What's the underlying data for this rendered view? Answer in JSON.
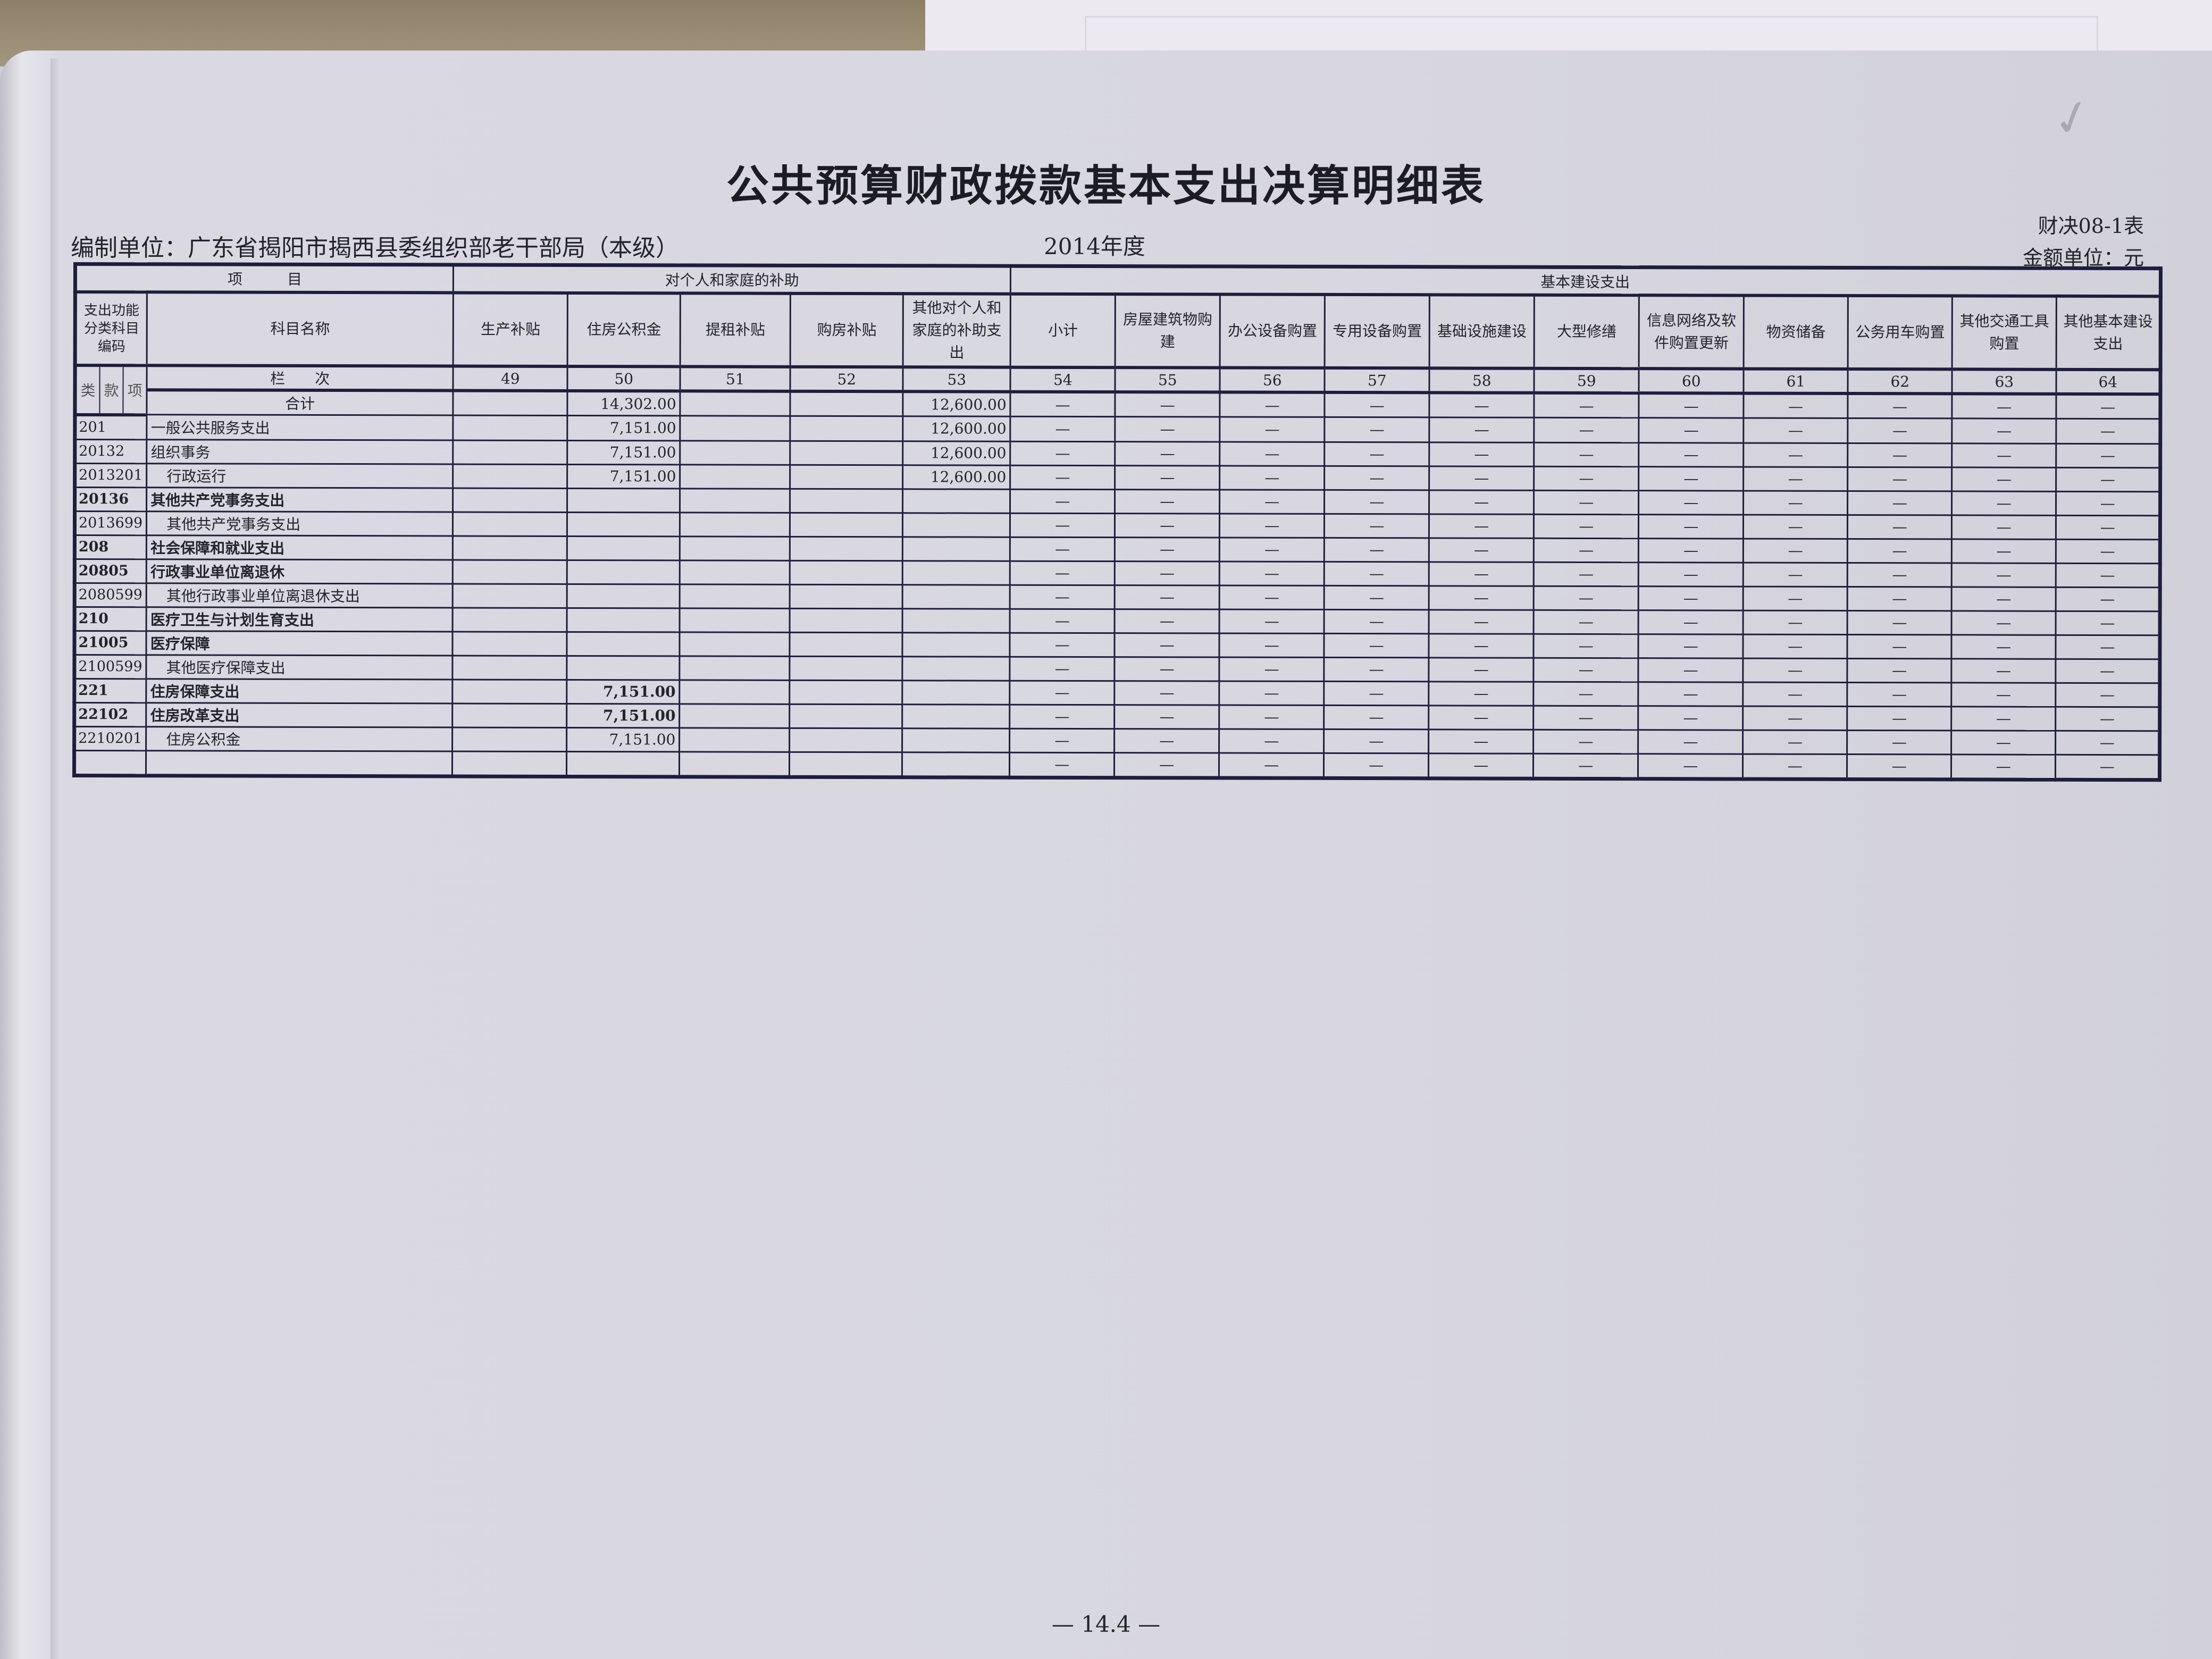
{
  "document": {
    "title": "公共预算财政拨款基本支出决算明细表",
    "unit": "编制单位：广东省揭阳市揭西县委组织部老干部局（本级）",
    "year": "2014年度",
    "form_no": "财决08-1表",
    "amount_unit": "金额单位：元",
    "page_number": "— 14.4 —"
  },
  "table": {
    "group_headers": {
      "item": "项　　　目",
      "personal": "对个人和家庭的补助",
      "construction": "基本建设支出"
    },
    "code_header": "支出功能分类科目编码",
    "name_header": "科目名称",
    "columns": [
      "生产补贴",
      "住房公积金",
      "提租补贴",
      "购房补贴",
      "其他对个人和家庭的补助支出",
      "小计",
      "房屋建筑物购建",
      "办公设备购置",
      "专用设备购置",
      "基础设施建设",
      "大型修缮",
      "信息网络及软件购置更新",
      "物资储备",
      "公务用车购置",
      "其他交通工具购置",
      "其他基本建设支出"
    ],
    "column_numbers": [
      "49",
      "50",
      "51",
      "52",
      "53",
      "54",
      "55",
      "56",
      "57",
      "58",
      "59",
      "60",
      "61",
      "62",
      "63",
      "64"
    ],
    "sub_code_labels": [
      "类",
      "款",
      "项"
    ],
    "line_label": "栏　　次",
    "total_label": "合计",
    "total_values": [
      "",
      "14,302.00",
      "",
      "",
      "12,600.00"
    ],
    "dash": "—",
    "rows": [
      {
        "code": "201",
        "name": "一般公共服务支出",
        "bold": false,
        "indent": false,
        "values": [
          "",
          "7,151.00",
          "",
          "",
          "12,600.00"
        ]
      },
      {
        "code": "20132",
        "name": "组织事务",
        "bold": false,
        "indent": false,
        "values": [
          "",
          "7,151.00",
          "",
          "",
          "12,600.00"
        ]
      },
      {
        "code": "2013201",
        "name": "行政运行",
        "bold": false,
        "indent": true,
        "values": [
          "",
          "7,151.00",
          "",
          "",
          "12,600.00"
        ]
      },
      {
        "code": "20136",
        "name": "其他共产党事务支出",
        "bold": true,
        "indent": false,
        "values": [
          "",
          "",
          "",
          "",
          ""
        ]
      },
      {
        "code": "2013699",
        "name": "其他共产党事务支出",
        "bold": false,
        "indent": true,
        "values": [
          "",
          "",
          "",
          "",
          ""
        ]
      },
      {
        "code": "208",
        "name": "社会保障和就业支出",
        "bold": true,
        "indent": false,
        "values": [
          "",
          "",
          "",
          "",
          ""
        ]
      },
      {
        "code": "20805",
        "name": "行政事业单位离退休",
        "bold": true,
        "indent": false,
        "values": [
          "",
          "",
          "",
          "",
          ""
        ]
      },
      {
        "code": "2080599",
        "name": "其他行政事业单位离退休支出",
        "bold": false,
        "indent": true,
        "values": [
          "",
          "",
          "",
          "",
          ""
        ]
      },
      {
        "code": "210",
        "name": "医疗卫生与计划生育支出",
        "bold": true,
        "indent": false,
        "values": [
          "",
          "",
          "",
          "",
          ""
        ]
      },
      {
        "code": "21005",
        "name": "医疗保障",
        "bold": true,
        "indent": false,
        "values": [
          "",
          "",
          "",
          "",
          ""
        ]
      },
      {
        "code": "2100599",
        "name": "其他医疗保障支出",
        "bold": false,
        "indent": true,
        "values": [
          "",
          "",
          "",
          "",
          ""
        ]
      },
      {
        "code": "221",
        "name": "住房保障支出",
        "bold": true,
        "indent": false,
        "values": [
          "",
          "7,151.00",
          "",
          "",
          ""
        ]
      },
      {
        "code": "22102",
        "name": "住房改革支出",
        "bold": true,
        "indent": false,
        "values": [
          "",
          "7,151.00",
          "",
          "",
          ""
        ]
      },
      {
        "code": "2210201",
        "name": "住房公积金",
        "bold": false,
        "indent": true,
        "values": [
          "",
          "7,151.00",
          "",
          "",
          ""
        ]
      },
      {
        "code": "",
        "name": "",
        "bold": false,
        "indent": false,
        "values": [
          "",
          "",
          "",
          "",
          ""
        ]
      }
    ]
  }
}
